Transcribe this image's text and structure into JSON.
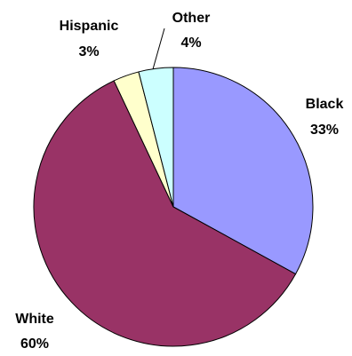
{
  "chart_data": {
    "type": "pie",
    "start_angle_deg": 0,
    "direction": "clockwise",
    "slices": [
      {
        "label": "Black",
        "percent_label": "33%",
        "value": 33,
        "color": "#9999FF"
      },
      {
        "label": "White",
        "percent_label": "60%",
        "value": 60,
        "color": "#993366"
      },
      {
        "label": "Hispanic",
        "percent_label": "3%",
        "value": 3,
        "color": "#FFFFCC"
      },
      {
        "label": "Other",
        "percent_label": "4%",
        "value": 4,
        "color": "#CCFFFF"
      }
    ]
  }
}
